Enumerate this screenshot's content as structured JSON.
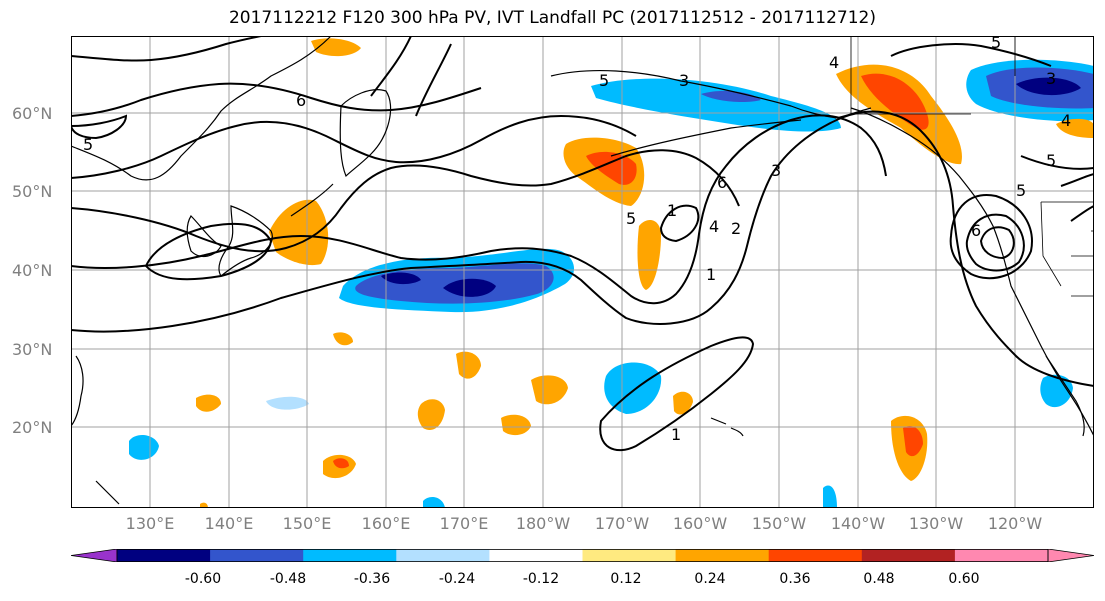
{
  "title": "2017112212 F120 300 hPa PV, IVT Landfall PC (2017112512 - 2017112712)",
  "map": {
    "lat_labels": [
      "60°N",
      "50°N",
      "40°N",
      "30°N",
      "20°N"
    ],
    "lon_labels": [
      "130°E",
      "140°E",
      "150°E",
      "160°E",
      "170°E",
      "180°W",
      "170°W",
      "160°W",
      "150°W",
      "140°W",
      "130°W",
      "120°W"
    ],
    "grid_color": "#a0a0a0",
    "contour_labels": [
      "5",
      "6",
      "3",
      "5",
      "4",
      "3",
      "5",
      "1",
      "6",
      "4",
      "2",
      "3",
      "5",
      "1",
      "5",
      "5",
      "6",
      "4",
      "1"
    ]
  },
  "colorbar": {
    "colors": [
      "#9933cc",
      "#000080",
      "#3355cc",
      "#00bbff",
      "#b3e0ff",
      "#ffffff",
      "#ffea80",
      "#ffa500",
      "#ff4500",
      "#b22222",
      "#ff88b0",
      "#ff88b0"
    ],
    "tick_labels": [
      "-0.60",
      "-0.48",
      "-0.36",
      "-0.24",
      "-0.12",
      "0.12",
      "0.24",
      "0.36",
      "0.48",
      "0.60"
    ]
  }
}
